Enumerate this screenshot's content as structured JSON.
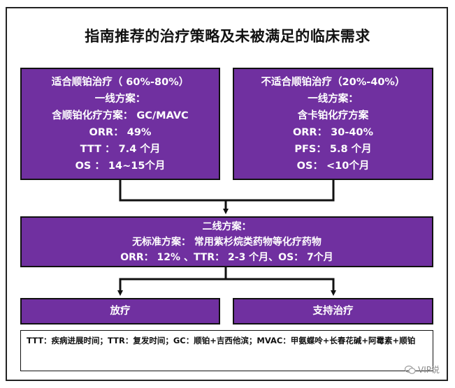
{
  "title": "指南推荐的治疗策略及未被满足的临床需求",
  "left_box": {
    "lines": [
      "适合顺铂治疗（ 60%-80%）",
      "一线方案：",
      "含顺铂化疗方案： GC/MAVC",
      "ORR：  49%",
      "TTT ：  7.4 个月",
      "OS ：  14~15个月"
    ]
  },
  "right_box": {
    "lines": [
      "不适合顺铂治疗（20%-40%）",
      "一线方案：",
      "含卡铂化疗方案",
      "ORR：  30-40%",
      "PFS：  5.8 个月",
      "OS：  <10个月"
    ]
  },
  "middle_box": {
    "lines": [
      "二线方案：",
      "无标准方案：  常用紫杉烷类药物等化疗药物",
      "ORR：  12% 、TTR：  2-3 个月、OS：  7个月"
    ]
  },
  "bottom_left_box": "放疗",
  "bottom_right_box": "支持治疗",
  "footnote": "TTT：疾病进展时间；TTR：复发时间；GC：顺铂+吉西他滨；MVAC：甲氨蝶呤+长春花碱+阿霉素+顺铂",
  "watermark": "VIP说",
  "colors": {
    "box_fill": "#7030a0",
    "box_text": "#ffffff",
    "connector": "#111111"
  }
}
